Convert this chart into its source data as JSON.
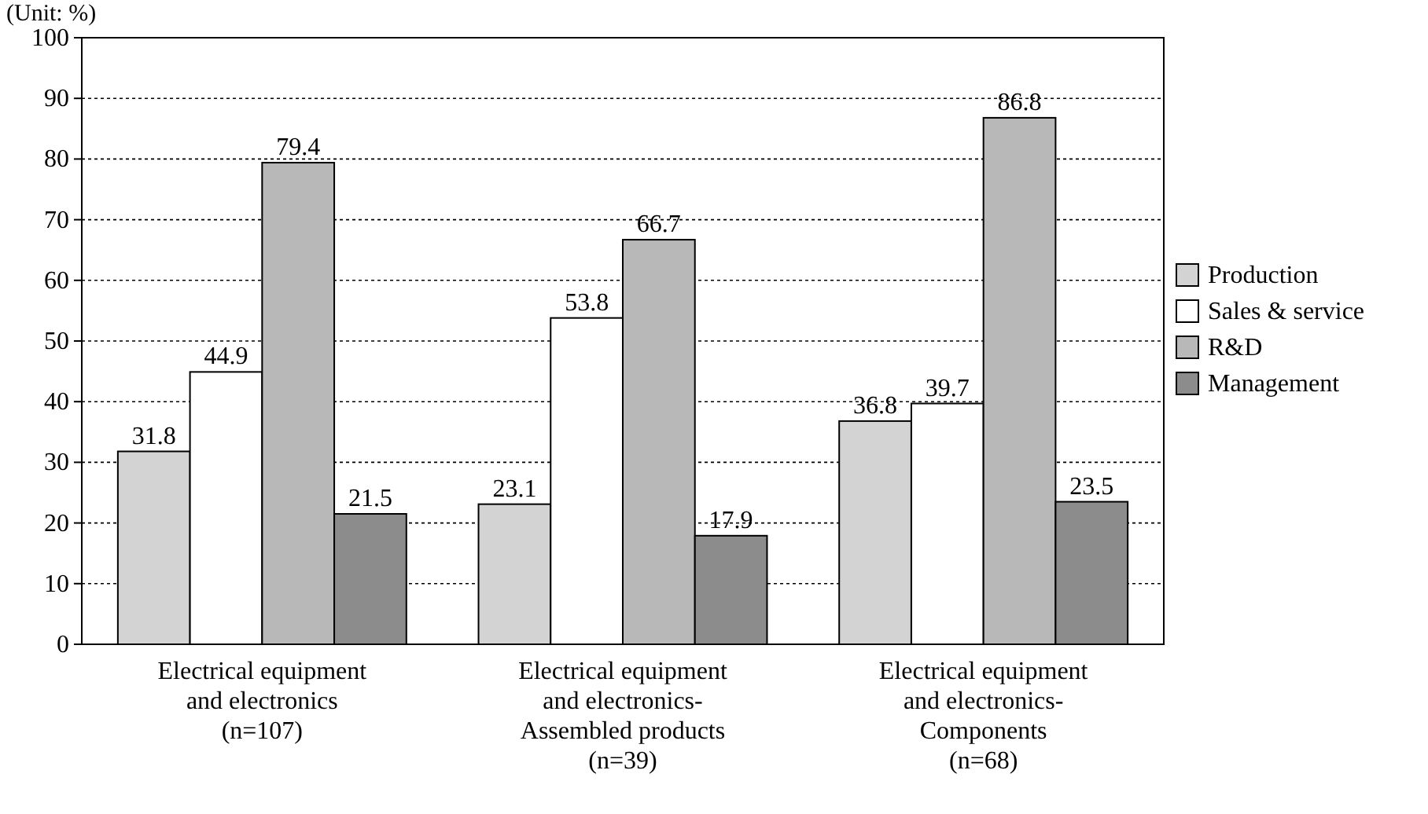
{
  "chart_data": {
    "type": "bar",
    "ylabel": "(Unit: %)",
    "categories": [
      "Electrical equipment and electronics (n=107)",
      "Electrical equipment and electronics-Assembled products (n=39)",
      "Electrical equipment and electronics-Components (n=68)"
    ],
    "series": [
      {
        "name": "Production",
        "color": "#d3d3d3",
        "values": [
          31.8,
          23.1,
          36.8
        ]
      },
      {
        "name": "Sales & service",
        "color": "#ffffff",
        "values": [
          44.9,
          53.8,
          39.7
        ]
      },
      {
        "name": "R&D",
        "color": "#b8b8b8",
        "values": [
          79.4,
          66.7,
          86.8
        ]
      },
      {
        "name": "Management",
        "color": "#8c8c8c",
        "values": [
          21.5,
          17.9,
          23.5
        ]
      }
    ],
    "ylim": [
      0,
      100
    ],
    "yticks": [
      0,
      10,
      20,
      30,
      40,
      50,
      60,
      70,
      80,
      90,
      100
    ],
    "grid": "y",
    "legend": "right",
    "data_labels": true
  }
}
